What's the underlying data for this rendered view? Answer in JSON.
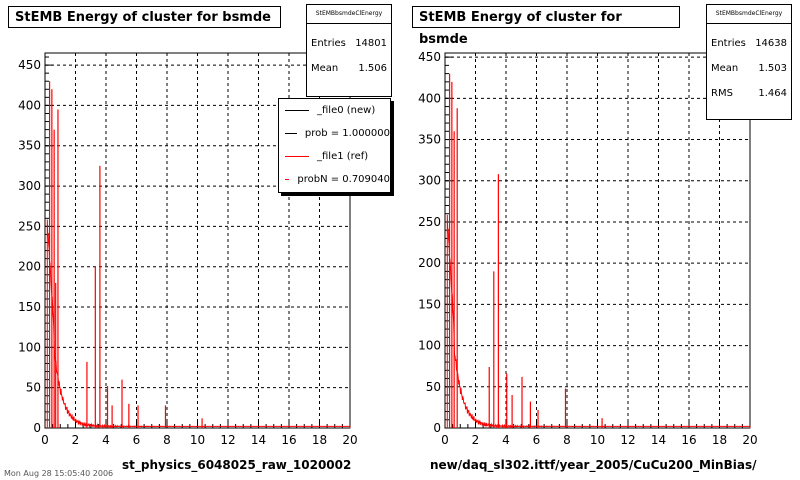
{
  "colors": {
    "file0": "#000000",
    "file1": "#ff0000",
    "grid": "#000000"
  },
  "footer": "Mon Aug 28 15:05:40 2006",
  "chart_data": [
    {
      "type": "histogram",
      "title": "StEMB Energy of cluster for bsmde",
      "xlabel": "st_physics_6048025_raw_1020002",
      "xlim": [
        0,
        20
      ],
      "ylim": [
        0,
        465
      ],
      "xticks": [
        0,
        2,
        4,
        6,
        8,
        10,
        12,
        14,
        16,
        18,
        20
      ],
      "yticks": [
        0,
        50,
        100,
        150,
        200,
        250,
        300,
        350,
        400,
        450
      ],
      "grid": true,
      "stats": {
        "name": "StEMBbsmdeClEnergy",
        "rows": [
          {
            "label": "Entries",
            "value": "14801"
          },
          {
            "label": "Mean",
            "value": "1.506"
          }
        ]
      },
      "legend": {
        "placement": "top-right",
        "entries": [
          "_file0 (new)",
          "prob = 1.000000",
          "_file1 (ref)",
          "probN = 0.709040"
        ]
      },
      "series": [
        {
          "name": "_file1 (ref)",
          "color": "#ff0000",
          "spikes": [
            [
              0.3,
              430
            ],
            [
              0.45,
              420
            ],
            [
              0.6,
              370
            ],
            [
              0.7,
              180
            ],
            [
              0.85,
              395
            ],
            [
              2.75,
              82
            ],
            [
              3.3,
              200
            ],
            [
              3.6,
              325
            ],
            [
              4.1,
              52
            ],
            [
              4.4,
              28
            ],
            [
              5.05,
              60
            ],
            [
              5.5,
              30
            ],
            [
              6.1,
              28
            ],
            [
              7.9,
              28
            ],
            [
              10.3,
              12
            ]
          ]
        }
      ]
    },
    {
      "type": "histogram",
      "title": "StEMB Energy of cluster for bsmde",
      "xlabel": "new/daq_sl302.ittf/year_2005/CuCu200_MinBias/",
      "xlim": [
        0,
        20
      ],
      "ylim": [
        0,
        455
      ],
      "xticks": [
        0,
        2,
        4,
        6,
        8,
        10,
        12,
        14,
        16,
        18,
        20
      ],
      "yticks": [
        0,
        50,
        100,
        150,
        200,
        250,
        300,
        350,
        400,
        450
      ],
      "grid": true,
      "stats": {
        "name": "StEMBbsmdeClEnergy",
        "rows": [
          {
            "label": "Entries",
            "value": "14638"
          },
          {
            "label": "Mean",
            "value": "1.503"
          },
          {
            "label": "RMS",
            "value": "1.464"
          }
        ]
      },
      "series": [
        {
          "name": "_file0 (new)",
          "color": "#ff0000",
          "spikes": [
            [
              0.3,
              430
            ],
            [
              0.45,
              420
            ],
            [
              0.6,
              360
            ],
            [
              0.8,
              388
            ],
            [
              2.9,
              74
            ],
            [
              3.2,
              190
            ],
            [
              3.5,
              308
            ],
            [
              4.05,
              66
            ],
            [
              4.4,
              40
            ],
            [
              5.05,
              62
            ],
            [
              5.6,
              32
            ],
            [
              6.1,
              22
            ],
            [
              7.9,
              48
            ],
            [
              10.3,
              12
            ]
          ]
        }
      ]
    }
  ]
}
